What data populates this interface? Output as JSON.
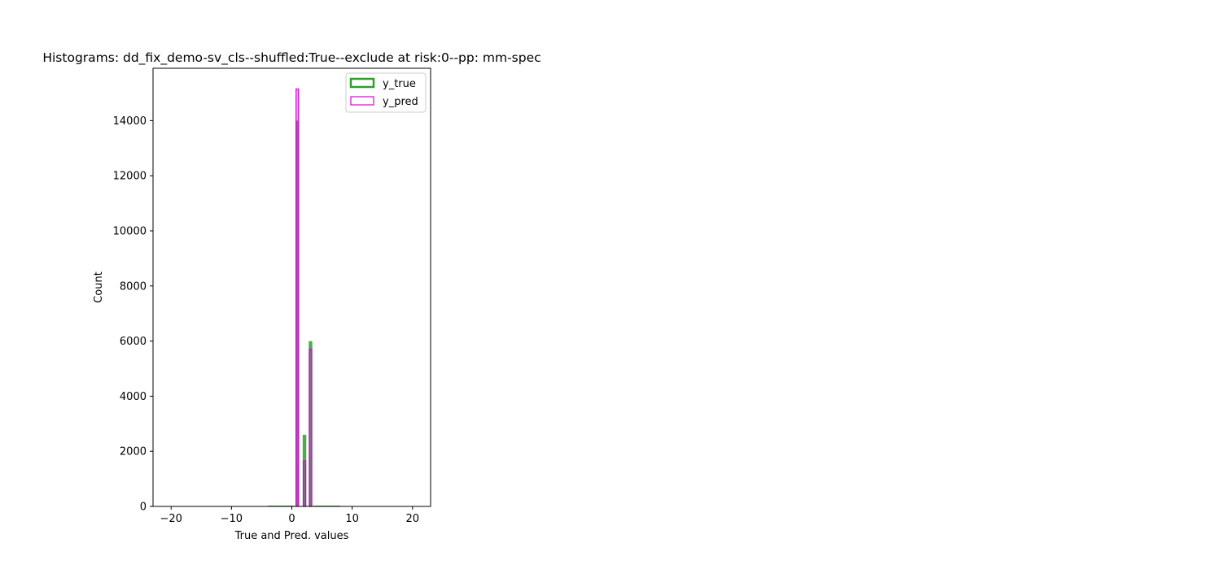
{
  "chart_data": {
    "type": "bar",
    "title": "Histograms: dd_fix_demo-sv_cls--shuffled:True--exclude at risk:0--pp: mm-spec",
    "xlabel": "True and Pred. values",
    "ylabel": "Count",
    "xlim": [
      -23,
      23
    ],
    "ylim": [
      0,
      15900
    ],
    "xticks": [
      -20,
      -10,
      0,
      10,
      20
    ],
    "yticks": [
      0,
      2000,
      4000,
      6000,
      8000,
      10000,
      12000,
      14000
    ],
    "grid": false,
    "legend_position": "top-right",
    "series": [
      {
        "name": "y_true",
        "color": "#2ca02c",
        "style": "filled",
        "bins": [
          {
            "x0": -4.0,
            "x1": 0.3,
            "value": 12
          },
          {
            "x0": 0.6,
            "x1": 1.2,
            "value": 14000
          },
          {
            "x0": 1.8,
            "x1": 2.4,
            "value": 2600
          },
          {
            "x0": 2.8,
            "x1": 3.4,
            "value": 6000
          },
          {
            "x0": 3.6,
            "x1": 8.0,
            "value": 12
          }
        ]
      },
      {
        "name": "y_pred",
        "color": "#e000e0",
        "style": "outline",
        "bins": [
          {
            "x0": 0.7,
            "x1": 1.1,
            "value": 15150
          },
          {
            "x0": 1.9,
            "x1": 2.3,
            "value": 1650
          },
          {
            "x0": 2.9,
            "x1": 3.3,
            "value": 5700
          }
        ]
      }
    ]
  }
}
